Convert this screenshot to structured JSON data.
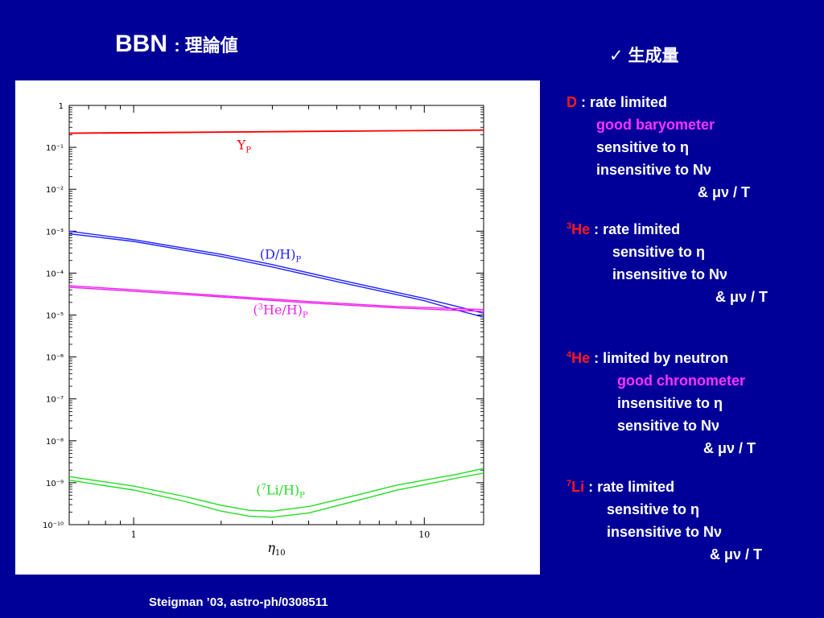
{
  "slide": {
    "title_main": "BBN",
    "title_sub": ": 理論値",
    "check_mark": "✓",
    "check_label": "生成量",
    "citation": "Steigman ’03, astro-ph/0308511"
  },
  "notes": {
    "d": {
      "sym": "D",
      "rate": " : rate limited",
      "l1": "good baryometer",
      "l2": "sensitive to η",
      "l3": "insensitive to Nν",
      "l4": "& μν / T"
    },
    "he3": {
      "mass": "3",
      "sym": "He",
      "rate": " : rate limited",
      "l1": "sensitive to η",
      "l2": "insensitive to Nν",
      "l3": "& μν / T"
    },
    "he4": {
      "mass": "4",
      "sym": "He",
      "rate": " : limited by neutron",
      "l1": "good chronometer",
      "l2": "insensitive to η",
      "l3": "sensitive to Nν",
      "l4": "& μν / T"
    },
    "li7": {
      "mass": "7",
      "sym": "Li",
      "rate": " : rate limited",
      "l1": "sensitive to η",
      "l2": "insensitive to Nν",
      "l3": "& μν / T"
    }
  },
  "chart_data": {
    "type": "line",
    "x_scale": "log",
    "y_scale": "log",
    "xlim": [
      0.6,
      16
    ],
    "ylim": [
      1e-10,
      1
    ],
    "xlabel": "η10",
    "x_tick_labels": [
      {
        "v": 1,
        "t": "1"
      },
      {
        "v": 10,
        "t": "10"
      }
    ],
    "y_tick_labels": [
      {
        "e": 0,
        "t": "1"
      },
      {
        "e": -1,
        "t": "10⁻¹"
      },
      {
        "e": -2,
        "t": "10⁻²"
      },
      {
        "e": -3,
        "t": "10⁻³"
      },
      {
        "e": -4,
        "t": "10⁻⁴"
      },
      {
        "e": -5,
        "t": "10⁻⁵"
      },
      {
        "e": -6,
        "t": "10⁻⁶"
      },
      {
        "e": -7,
        "t": "10⁻⁷"
      },
      {
        "e": -8,
        "t": "10⁻⁸"
      },
      {
        "e": -9,
        "t": "10⁻⁹"
      },
      {
        "e": -10,
        "t": "10⁻¹⁰"
      }
    ],
    "series": [
      {
        "name": "Y_P",
        "color": "#ff0000",
        "upper": [
          [
            0.6,
            0.22
          ],
          [
            16,
            0.26
          ]
        ],
        "lower": [
          [
            0.6,
            0.215
          ],
          [
            16,
            0.255
          ]
        ],
        "label": {
          "main": "Y",
          "sub": "P",
          "lx": 2.4,
          "ly": 0.09
        }
      },
      {
        "name": "(D/H)_P",
        "color": "#2222ff",
        "upper": [
          [
            0.6,
            0.001
          ],
          [
            1,
            0.00063
          ],
          [
            2,
            0.00028
          ],
          [
            3,
            0.00016
          ],
          [
            5,
            7.1e-05
          ],
          [
            8,
            3.5e-05
          ],
          [
            10,
            2.5e-05
          ],
          [
            13,
            1.6e-05
          ],
          [
            16,
            1.1e-05
          ]
        ],
        "lower": [
          [
            0.6,
            0.00087
          ],
          [
            1,
            0.00057
          ],
          [
            2,
            0.00025
          ],
          [
            3,
            0.00014
          ],
          [
            5,
            6.3e-05
          ],
          [
            8,
            3.1e-05
          ],
          [
            10,
            2.2e-05
          ],
          [
            13,
            1.3e-05
          ],
          [
            16,
            8.9e-06
          ]
        ],
        "label": {
          "pre": "(D/H)",
          "sub": "P",
          "lx": 3.2,
          "ly": 0.00022
        }
      },
      {
        "name": "(3He/H)_P",
        "color": "#ee22ee",
        "upper": [
          [
            0.6,
            5e-05
          ],
          [
            1,
            4e-05
          ],
          [
            2,
            2.9e-05
          ],
          [
            4,
            2.1e-05
          ],
          [
            8,
            1.6e-05
          ],
          [
            16,
            1.35e-05
          ]
        ],
        "lower": [
          [
            0.6,
            4.6e-05
          ],
          [
            1,
            3.7e-05
          ],
          [
            2,
            2.7e-05
          ],
          [
            4,
            1.95e-05
          ],
          [
            8,
            1.48e-05
          ],
          [
            16,
            1.22e-05
          ]
        ],
        "label": {
          "pre": "(",
          "sup": "3",
          "main": "He/H)",
          "sub": "P",
          "lx": 3.2,
          "ly": 1.05e-05
        }
      },
      {
        "name": "(7Li/H)_P",
        "color": "#22dd22",
        "upper": [
          [
            0.6,
            1.4e-09
          ],
          [
            1,
            8.3e-10
          ],
          [
            1.5,
            4.7e-10
          ],
          [
            2,
            2.9e-10
          ],
          [
            2.5,
            2.2e-10
          ],
          [
            3,
            2.1e-10
          ],
          [
            4,
            2.7e-10
          ],
          [
            6,
            5.3e-10
          ],
          [
            8,
            8.7e-10
          ],
          [
            10,
            1.15e-09
          ],
          [
            13,
            1.6e-09
          ],
          [
            16,
            2.2e-09
          ]
        ],
        "lower": [
          [
            0.6,
            1.15e-09
          ],
          [
            1,
            6.7e-10
          ],
          [
            1.5,
            3.6e-10
          ],
          [
            2,
            2.1e-10
          ],
          [
            2.5,
            1.6e-10
          ],
          [
            3,
            1.5e-10
          ],
          [
            4,
            1.9e-10
          ],
          [
            6,
            3.9e-10
          ],
          [
            8,
            6.6e-10
          ],
          [
            10,
            9e-10
          ],
          [
            13,
            1.3e-09
          ],
          [
            16,
            1.7e-09
          ]
        ],
        "label": {
          "pre": "(",
          "sup": "7",
          "main": "Li/H)",
          "sub": "P",
          "lx": 3.2,
          "ly": 5.2e-10
        }
      }
    ]
  }
}
